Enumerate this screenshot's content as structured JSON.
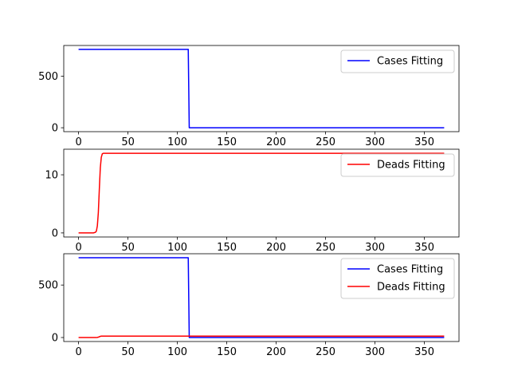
{
  "chart_data": [
    {
      "type": "line",
      "xlim": [
        -15,
        385
      ],
      "ylim": [
        -38,
        798
      ],
      "x_ticks": [
        0,
        50,
        100,
        150,
        200,
        250,
        300,
        350
      ],
      "y_ticks": [
        0,
        500
      ],
      "grid": false,
      "legend_position": "upper right",
      "series": [
        {
          "name": "Cases Fitting",
          "color": "#0000ff",
          "x": [
            0,
            111,
            112,
            370
          ],
          "y": [
            760,
            760,
            0,
            0
          ]
        }
      ]
    },
    {
      "type": "line",
      "xlim": [
        -15,
        385
      ],
      "ylim": [
        -0.7,
        14.4
      ],
      "x_ticks": [
        0,
        50,
        100,
        150,
        200,
        250,
        300,
        350
      ],
      "y_ticks": [
        0,
        10
      ],
      "grid": false,
      "legend_position": "upper right",
      "series": [
        {
          "name": "Deads Fitting",
          "color": "#ff0000",
          "x": [
            0,
            15,
            17,
            18,
            19,
            20,
            21,
            22,
            23,
            24,
            25,
            26,
            370
          ],
          "y": [
            0,
            0,
            0.1,
            0.3,
            1.2,
            3.5,
            7.5,
            11.2,
            13.0,
            13.6,
            13.7,
            13.7,
            13.7
          ]
        }
      ]
    },
    {
      "type": "line",
      "xlim": [
        -15,
        385
      ],
      "ylim": [
        -38,
        798
      ],
      "x_ticks": [
        0,
        50,
        100,
        150,
        200,
        250,
        300,
        350
      ],
      "y_ticks": [
        0,
        500
      ],
      "grid": false,
      "legend_position": "upper right",
      "series": [
        {
          "name": "Cases Fitting",
          "color": "#0000ff",
          "x": [
            0,
            111,
            112,
            370
          ],
          "y": [
            760,
            760,
            0,
            0
          ]
        },
        {
          "name": "Deads Fitting",
          "color": "#ff0000",
          "x": [
            0,
            15,
            17,
            18,
            19,
            20,
            21,
            22,
            23,
            24,
            25,
            26,
            370
          ],
          "y": [
            0,
            0,
            0.1,
            0.3,
            1.2,
            3.5,
            7.5,
            11.2,
            13.0,
            13.6,
            13.7,
            13.7,
            13.7
          ]
        }
      ]
    }
  ]
}
